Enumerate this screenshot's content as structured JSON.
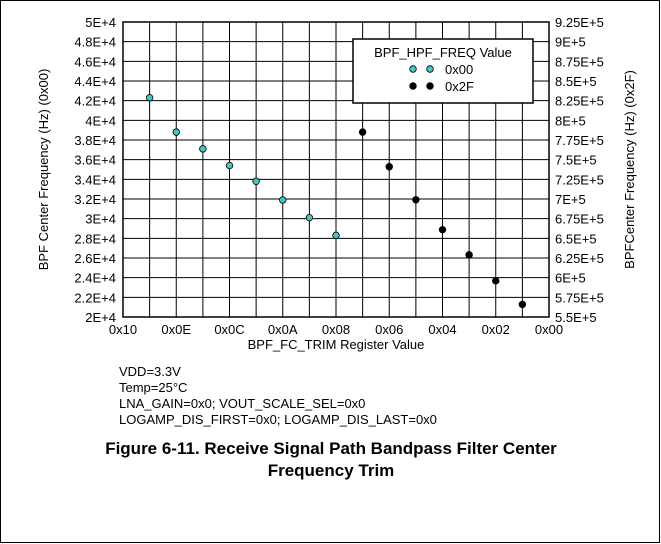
{
  "chart_data": {
    "type": "scatter",
    "xlabel": "BPF_FC_TRIM Register Value",
    "ylabel_left": "BPF Center Frequency (Hz) (0x00)",
    "ylabel_right": "BPFCenter  Frequency (Hz) (0x2F)",
    "x_categories": [
      "0x10",
      "0x0F",
      "0x0E",
      "0x0D",
      "0x0C",
      "0x0B",
      "0x0A",
      "0x09",
      "0x08",
      "0x07",
      "0x06",
      "0x05",
      "0x04",
      "0x03",
      "0x02",
      "0x01",
      "0x00"
    ],
    "x_tick_labels": [
      "0x10",
      "0x0E",
      "0x0C",
      "0x0A",
      "0x08",
      "0x06",
      "0x04",
      "0x02",
      "0x00"
    ],
    "y_left_ticks": [
      "5E+4",
      "4.8E+4",
      "4.6E+4",
      "4.4E+4",
      "4.2E+4",
      "4E+4",
      "3.8E+4",
      "3.6E+4",
      "3.4E+4",
      "3.2E+4",
      "3E+4",
      "2.8E+4",
      "2.6E+4",
      "2.4E+4",
      "2.2E+4",
      "2E+4"
    ],
    "y_right_ticks": [
      "9.25E+5",
      "9E+5",
      "8.75E+5",
      "8.5E+5",
      "8.25E+5",
      "8E+5",
      "7.75E+5",
      "7.5E+5",
      "7.25E+5",
      "7E+5",
      "6.75E+5",
      "6.5E+5",
      "6.25E+5",
      "6E+5",
      "5.75E+5",
      "5.5E+5"
    ],
    "ylim_left": [
      20000,
      50000
    ],
    "ylim_right": [
      550000,
      925000
    ],
    "grid": true,
    "legend": {
      "title": "BPF_HPF_FREQ Value",
      "placement": "top-right"
    },
    "series": [
      {
        "name": "0x00",
        "axis": "left",
        "color": "#44c6c6",
        "x": [
          "0x0F",
          "0x0E",
          "0x0D",
          "0x0C",
          "0x0B",
          "0x0A",
          "0x09",
          "0x08"
        ],
        "y": [
          42300,
          38800,
          37100,
          35400,
          33800,
          31900,
          30100,
          28300
        ]
      },
      {
        "name": "0x2F",
        "axis": "right",
        "color": "#000000",
        "x": [
          "0x07",
          "0x06",
          "0x05",
          "0x04",
          "0x03",
          "0x02",
          "0x01"
        ],
        "y": [
          785000,
          741000,
          699000,
          661000,
          629000,
          596000,
          566000
        ]
      }
    ]
  },
  "conditions": [
    "VDD=3.3V",
    "Temp=25°C",
    "LNA_GAIN=0x0; VOUT_SCALE_SEL=0x0",
    "LOGAMP_DIS_FIRST=0x0; LOGAMP_DIS_LAST=0x0"
  ],
  "caption": {
    "line1": "Figure 6-11. Receive Signal Path Bandpass Filter Center",
    "line2": "Frequency Trim"
  }
}
